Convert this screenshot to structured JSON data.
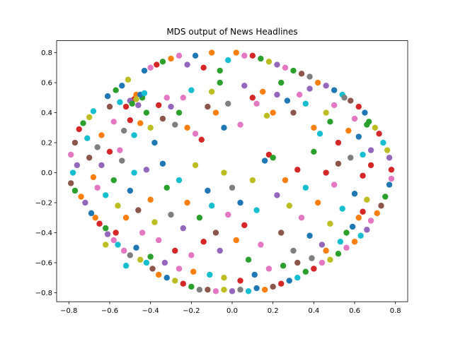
{
  "chart_data": {
    "type": "scatter",
    "title": "MDS output of News Headlines",
    "xlabel": "",
    "ylabel": "",
    "xlim": [
      -0.86,
      0.86
    ],
    "ylim": [
      -0.86,
      0.88
    ],
    "xticks": [
      -0.8,
      -0.6,
      -0.4,
      -0.2,
      0.0,
      0.2,
      0.4,
      0.6,
      0.8
    ],
    "yticks": [
      -0.8,
      -0.6,
      -0.4,
      -0.2,
      0.0,
      0.2,
      0.4,
      0.6,
      0.8
    ],
    "xtick_labels": [
      "−0.8",
      "−0.6",
      "−0.4",
      "−0.2",
      "0.0",
      "0.2",
      "0.4",
      "0.6",
      "0.8"
    ],
    "ytick_labels": [
      "−0.8",
      "−0.6",
      "−0.4",
      "−0.2",
      "0.0",
      "0.2",
      "0.4",
      "0.6",
      "0.8"
    ],
    "grid": false,
    "legend": "none",
    "colors": [
      "#1f77b4",
      "#ff7f0e",
      "#2ca02c",
      "#d62728",
      "#9467bd",
      "#8c564b",
      "#e377c2",
      "#7f7f7f",
      "#bcbd22",
      "#17becf"
    ],
    "points": [
      [
        -0.79,
        0.12,
        6
      ],
      [
        -0.78,
        0.0,
        9
      ],
      [
        -0.79,
        -0.07,
        5
      ],
      [
        -0.77,
        0.2,
        5
      ],
      [
        -0.76,
        0.05,
        4
      ],
      [
        -0.77,
        -0.12,
        2
      ],
      [
        -0.75,
        0.29,
        3
      ],
      [
        -0.74,
        -0.16,
        1
      ],
      [
        -0.73,
        0.33,
        2
      ],
      [
        -0.72,
        -0.2,
        4
      ],
      [
        -0.71,
        0.23,
        9
      ],
      [
        -0.7,
        0.37,
        8
      ],
      [
        -0.69,
        -0.27,
        0
      ],
      [
        -0.68,
        0.41,
        9
      ],
      [
        -0.67,
        -0.3,
        1
      ],
      [
        -0.66,
        0.17,
        7
      ],
      [
        -0.65,
        -0.34,
        3
      ],
      [
        -0.64,
        0.25,
        1
      ],
      [
        -0.62,
        -0.37,
        2
      ],
      [
        -0.61,
        0.51,
        0
      ],
      [
        -0.61,
        -0.41,
        4
      ],
      [
        -0.6,
        0.44,
        5
      ],
      [
        -0.58,
        -0.45,
        6
      ],
      [
        -0.57,
        0.55,
        2
      ],
      [
        -0.56,
        -0.48,
        9
      ],
      [
        -0.54,
        0.58,
        0
      ],
      [
        -0.53,
        -0.52,
        6
      ],
      [
        -0.51,
        0.62,
        8
      ],
      [
        -0.5,
        -0.55,
        7
      ],
      [
        -0.48,
        0.49,
        3
      ],
      [
        -0.47,
        0.52,
        1
      ],
      [
        -0.46,
        0.45,
        4
      ],
      [
        -0.45,
        -0.58,
        8
      ],
      [
        -0.44,
        0.5,
        2
      ],
      [
        -0.43,
        0.68,
        0
      ],
      [
        -0.42,
        -0.6,
        9
      ],
      [
        -0.4,
        0.7,
        6
      ],
      [
        -0.39,
        -0.64,
        5
      ],
      [
        -0.37,
        0.72,
        3
      ],
      [
        -0.36,
        -0.68,
        1
      ],
      [
        -0.34,
        0.74,
        2
      ],
      [
        -0.32,
        -0.7,
        0
      ],
      [
        -0.3,
        0.76,
        1
      ],
      [
        -0.28,
        -0.72,
        8
      ],
      [
        -0.26,
        0.78,
        6
      ],
      [
        -0.24,
        -0.74,
        3
      ],
      [
        -0.22,
        0.72,
        4
      ],
      [
        -0.2,
        -0.76,
        2
      ],
      [
        -0.18,
        0.78,
        0
      ],
      [
        -0.16,
        -0.78,
        7
      ],
      [
        -0.14,
        0.7,
        3
      ],
      [
        -0.12,
        -0.78,
        5
      ],
      [
        -0.1,
        0.8,
        1
      ],
      [
        -0.08,
        -0.79,
        6
      ],
      [
        -0.06,
        0.68,
        2
      ],
      [
        -0.04,
        -0.78,
        8
      ],
      [
        -0.02,
        0.75,
        9
      ],
      [
        0.0,
        -0.79,
        4
      ],
      [
        0.02,
        0.8,
        1
      ],
      [
        0.04,
        -0.78,
        7
      ],
      [
        0.06,
        0.78,
        6
      ],
      [
        0.08,
        -0.79,
        9
      ],
      [
        0.1,
        0.78,
        3
      ],
      [
        0.12,
        -0.77,
        0
      ],
      [
        0.14,
        0.76,
        2
      ],
      [
        0.16,
        -0.78,
        1
      ],
      [
        0.18,
        0.74,
        8
      ],
      [
        0.2,
        -0.76,
        5
      ],
      [
        0.22,
        0.72,
        4
      ],
      [
        0.24,
        -0.74,
        3
      ],
      [
        0.26,
        0.7,
        6
      ],
      [
        0.28,
        -0.72,
        0
      ],
      [
        0.3,
        0.68,
        2
      ],
      [
        0.32,
        -0.7,
        9
      ],
      [
        0.34,
        0.66,
        5
      ],
      [
        0.36,
        -0.66,
        2
      ],
      [
        0.38,
        0.64,
        7
      ],
      [
        0.4,
        -0.64,
        3
      ],
      [
        0.42,
        0.6,
        1
      ],
      [
        0.44,
        -0.6,
        6
      ],
      [
        0.46,
        0.58,
        4
      ],
      [
        0.48,
        -0.58,
        8
      ],
      [
        0.5,
        0.55,
        0
      ],
      [
        0.52,
        -0.54,
        2
      ],
      [
        0.54,
        0.52,
        9
      ],
      [
        0.56,
        -0.5,
        6
      ],
      [
        0.58,
        0.48,
        5
      ],
      [
        0.6,
        -0.46,
        1
      ],
      [
        0.62,
        0.44,
        3
      ],
      [
        0.63,
        -0.42,
        9
      ],
      [
        0.65,
        0.4,
        0
      ],
      [
        0.66,
        -0.38,
        4
      ],
      [
        0.67,
        0.34,
        2
      ],
      [
        0.68,
        -0.32,
        6
      ],
      [
        0.7,
        0.3,
        8
      ],
      [
        0.71,
        -0.27,
        1
      ],
      [
        0.72,
        0.26,
        3
      ],
      [
        0.73,
        -0.22,
        5
      ],
      [
        0.74,
        0.2,
        9
      ],
      [
        0.75,
        -0.16,
        2
      ],
      [
        0.76,
        0.15,
        8
      ],
      [
        0.77,
        -0.08,
        0
      ],
      [
        0.77,
        0.1,
        4
      ],
      [
        0.78,
        0.02,
        3
      ],
      [
        0.78,
        -0.04,
        6
      ],
      [
        -0.55,
        0.47,
        9
      ],
      [
        -0.52,
        0.44,
        3
      ],
      [
        -0.5,
        0.48,
        4
      ],
      [
        -0.49,
        0.46,
        2
      ],
      [
        -0.47,
        0.49,
        8
      ],
      [
        -0.45,
        0.52,
        0
      ],
      [
        -0.43,
        0.53,
        9
      ],
      [
        -0.58,
        0.34,
        6
      ],
      [
        -0.55,
        0.15,
        6
      ],
      [
        -0.53,
        0.28,
        7
      ],
      [
        -0.5,
        0.35,
        3
      ],
      [
        -0.48,
        0.25,
        9
      ],
      [
        -0.45,
        0.33,
        1
      ],
      [
        -0.42,
        0.4,
        2
      ],
      [
        -0.4,
        0.3,
        8
      ],
      [
        -0.38,
        0.2,
        0
      ],
      [
        -0.36,
        0.45,
        3
      ],
      [
        -0.34,
        0.36,
        5
      ],
      [
        -0.32,
        0.5,
        6
      ],
      [
        -0.3,
        0.44,
        4
      ],
      [
        -0.28,
        0.32,
        7
      ],
      [
        -0.26,
        0.4,
        2
      ],
      [
        -0.24,
        0.5,
        6
      ],
      [
        -0.22,
        0.3,
        1
      ],
      [
        -0.2,
        0.55,
        9
      ],
      [
        -0.18,
        0.26,
        6
      ],
      [
        -0.15,
        0.22,
        3
      ],
      [
        -0.12,
        0.44,
        5
      ],
      [
        -0.1,
        0.54,
        8
      ],
      [
        -0.08,
        0.4,
        1
      ],
      [
        -0.06,
        0.6,
        2
      ],
      [
        -0.04,
        0.3,
        0
      ],
      [
        -0.02,
        0.46,
        7
      ],
      [
        0.04,
        0.32,
        6
      ],
      [
        0.06,
        0.58,
        4
      ],
      [
        0.1,
        0.5,
        3
      ],
      [
        0.12,
        0.46,
        6
      ],
      [
        0.15,
        0.54,
        1
      ],
      [
        0.17,
        0.38,
        8
      ],
      [
        0.2,
        0.4,
        1
      ],
      [
        0.22,
        0.52,
        4
      ],
      [
        0.24,
        0.6,
        2
      ],
      [
        0.27,
        0.48,
        0
      ],
      [
        0.3,
        0.4,
        5
      ],
      [
        0.33,
        0.52,
        6
      ],
      [
        0.36,
        0.46,
        9
      ],
      [
        0.38,
        0.56,
        4
      ],
      [
        0.4,
        0.3,
        1
      ],
      [
        0.43,
        0.26,
        9
      ],
      [
        0.46,
        0.4,
        8
      ],
      [
        0.48,
        0.34,
        2
      ],
      [
        0.5,
        0.45,
        6
      ],
      [
        0.52,
        0.2,
        3
      ],
      [
        0.55,
        0.5,
        7
      ],
      [
        0.57,
        0.28,
        1
      ],
      [
        0.6,
        0.36,
        6
      ],
      [
        0.62,
        0.24,
        0
      ],
      [
        0.64,
        0.12,
        9
      ],
      [
        0.66,
        0.32,
        2
      ],
      [
        0.68,
        0.05,
        3
      ],
      [
        -0.7,
        0.1,
        5
      ],
      [
        -0.68,
        -0.03,
        1
      ],
      [
        -0.66,
        -0.1,
        6
      ],
      [
        -0.64,
        0.05,
        4
      ],
      [
        -0.62,
        -0.15,
        9
      ],
      [
        -0.6,
        0.14,
        3
      ],
      [
        -0.58,
        -0.05,
        2
      ],
      [
        -0.56,
        -0.22,
        8
      ],
      [
        -0.54,
        0.08,
        7
      ],
      [
        -0.52,
        -0.3,
        1
      ],
      [
        -0.5,
        -0.12,
        0
      ],
      [
        -0.48,
        0.0,
        9
      ],
      [
        -0.46,
        -0.25,
        5
      ],
      [
        -0.44,
        -0.4,
        6
      ],
      [
        -0.42,
        0.02,
        4
      ],
      [
        -0.4,
        -0.18,
        1
      ],
      [
        -0.38,
        -0.33,
        8
      ],
      [
        -0.36,
        -0.45,
        6
      ],
      [
        -0.34,
        0.06,
        0
      ],
      [
        -0.32,
        -0.1,
        2
      ],
      [
        -0.3,
        -0.28,
        7
      ],
      [
        -0.28,
        -0.52,
        3
      ],
      [
        -0.26,
        -0.05,
        9
      ],
      [
        -0.24,
        -0.37,
        4
      ],
      [
        -0.22,
        -0.2,
        1
      ],
      [
        -0.2,
        -0.55,
        6
      ],
      [
        -0.18,
        0.05,
        8
      ],
      [
        -0.16,
        -0.3,
        2
      ],
      [
        -0.14,
        -0.46,
        3
      ],
      [
        -0.12,
        -0.12,
        0
      ],
      [
        -0.1,
        -0.22,
        9
      ],
      [
        -0.08,
        -0.4,
        5
      ],
      [
        -0.06,
        -0.52,
        4
      ],
      [
        -0.04,
        0.0,
        8
      ],
      [
        -0.02,
        -0.28,
        6
      ],
      [
        0.0,
        -0.1,
        7
      ],
      [
        0.02,
        -0.45,
        1
      ],
      [
        0.04,
        -0.2,
        0
      ],
      [
        0.06,
        -0.35,
        3
      ],
      [
        0.08,
        -0.58,
        2
      ],
      [
        0.1,
        -0.05,
        8
      ],
      [
        0.12,
        -0.25,
        9
      ],
      [
        0.14,
        -0.48,
        6
      ],
      [
        0.16,
        0.08,
        0
      ],
      [
        0.18,
        0.12,
        3
      ],
      [
        0.2,
        0.1,
        2
      ],
      [
        0.22,
        -0.15,
        4
      ],
      [
        0.24,
        -0.4,
        5
      ],
      [
        0.26,
        -0.05,
        1
      ],
      [
        0.28,
        -0.22,
        8
      ],
      [
        0.3,
        -0.52,
        7
      ],
      [
        0.32,
        0.02,
        3
      ],
      [
        0.34,
        -0.3,
        6
      ],
      [
        0.36,
        -0.1,
        9
      ],
      [
        0.38,
        -0.42,
        0
      ],
      [
        0.4,
        0.14,
        2
      ],
      [
        0.42,
        -0.2,
        1
      ],
      [
        0.44,
        -0.48,
        4
      ],
      [
        0.46,
        0.0,
        3
      ],
      [
        0.48,
        -0.34,
        8
      ],
      [
        0.5,
        -0.08,
        6
      ],
      [
        0.52,
        0.06,
        5
      ],
      [
        0.54,
        -0.24,
        9
      ],
      [
        0.56,
        -0.4,
        2
      ],
      [
        0.58,
        0.1,
        7
      ],
      [
        0.6,
        -0.14,
        0
      ],
      [
        0.62,
        -0.3,
        1
      ],
      [
        0.64,
        -0.02,
        3
      ],
      [
        0.66,
        -0.18,
        8
      ],
      [
        0.68,
        0.15,
        4
      ],
      [
        -0.62,
        -0.48,
        8
      ],
      [
        -0.57,
        -0.4,
        3
      ],
      [
        -0.52,
        -0.62,
        9
      ],
      [
        -0.47,
        -0.5,
        0
      ],
      [
        -0.4,
        -0.56,
        2
      ],
      [
        -0.33,
        -0.6,
        4
      ],
      [
        -0.26,
        -0.64,
        6
      ],
      [
        -0.19,
        -0.66,
        1
      ],
      [
        -0.11,
        -0.68,
        9
      ],
      [
        -0.04,
        -0.7,
        8
      ],
      [
        0.04,
        -0.72,
        3
      ],
      [
        0.11,
        -0.68,
        0
      ],
      [
        0.18,
        -0.64,
        6
      ],
      [
        0.25,
        -0.62,
        2
      ],
      [
        0.32,
        -0.6,
        5
      ],
      [
        0.39,
        -0.57,
        7
      ],
      [
        0.46,
        -0.52,
        1
      ],
      [
        0.53,
        -0.46,
        9
      ],
      [
        0.59,
        -0.36,
        0
      ],
      [
        0.64,
        -0.26,
        3
      ]
    ]
  }
}
